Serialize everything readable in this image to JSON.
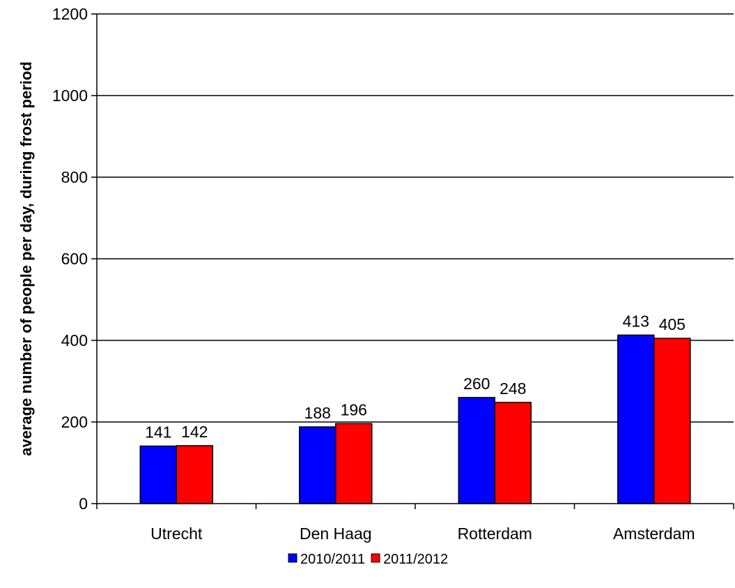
{
  "chart_data": {
    "type": "bar",
    "title": "",
    "xlabel": "",
    "ylabel": "average number of people per day, during frost period",
    "categories": [
      "Utrecht",
      "Den Haag",
      "Rotterdam",
      "Amsterdam"
    ],
    "series": [
      {
        "name": "2010/2011",
        "color": "#0000ff",
        "values": [
          141,
          188,
          260,
          413
        ]
      },
      {
        "name": "2011/2012",
        "color": "#ff0000",
        "values": [
          142,
          196,
          248,
          405
        ]
      }
    ],
    "ylim": [
      0,
      1200
    ],
    "yticks": [
      0,
      200,
      400,
      600,
      800,
      1000,
      1200
    ],
    "grid": true,
    "legend_position": "bottom"
  }
}
